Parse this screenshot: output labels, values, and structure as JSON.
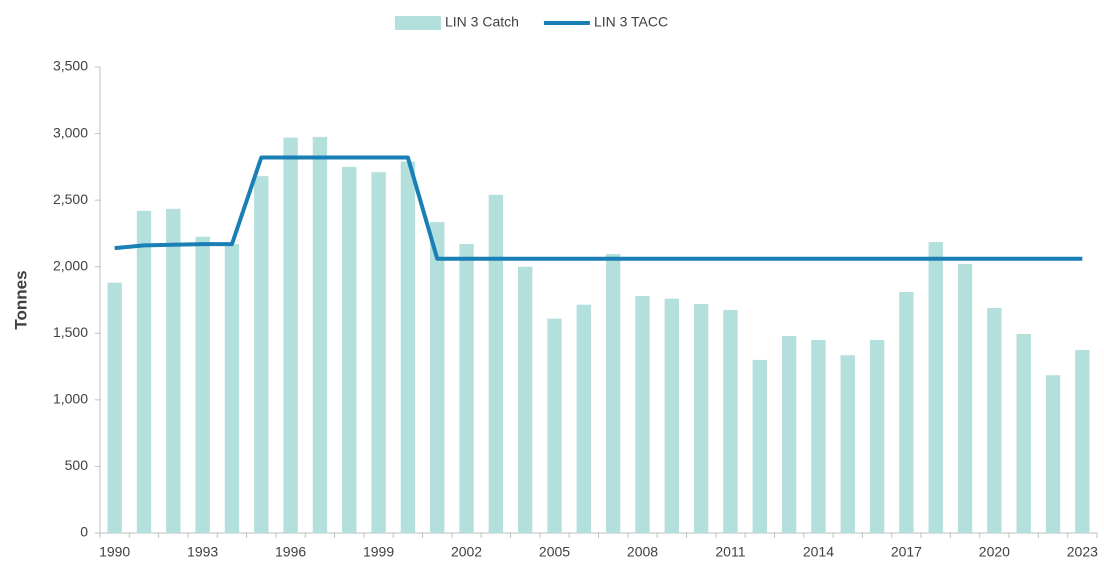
{
  "chart_data": {
    "type": "bar",
    "y_label": "Tonnes",
    "categories": [
      "1990",
      null,
      null,
      "1993",
      null,
      null,
      "1996",
      null,
      null,
      "1999",
      null,
      null,
      "2002",
      null,
      null,
      "2005",
      null,
      null,
      "2008",
      null,
      null,
      "2011",
      null,
      null,
      "2014",
      null,
      null,
      "2017",
      null,
      null,
      "2020",
      null,
      null,
      "2023"
    ],
    "series": [
      {
        "name": "LIN 3 Catch",
        "type": "bar",
        "color": "#b3dfdc",
        "values": [
          1880,
          2420,
          2435,
          2225,
          2170,
          2680,
          2970,
          2975,
          2750,
          2710,
          2790,
          2335,
          2170,
          2540,
          2000,
          1610,
          1715,
          2095,
          1780,
          1760,
          1720,
          1675,
          1300,
          1480,
          1450,
          1335,
          1450,
          1810,
          2185,
          2020,
          1690,
          1495,
          1185,
          1375
        ]
      },
      {
        "name": "LIN 3 TACC",
        "type": "line",
        "color": "#1a7fb5",
        "values": [
          2140,
          2160,
          2165,
          2170,
          2170,
          2820,
          2820,
          2820,
          2820,
          2820,
          2820,
          2060,
          2060,
          2060,
          2060,
          2060,
          2060,
          2060,
          2060,
          2060,
          2060,
          2060,
          2060,
          2060,
          2060,
          2060,
          2060,
          2060,
          2060,
          2060,
          2060,
          2060,
          2060,
          2060
        ]
      }
    ],
    "ylim": [
      0,
      3500
    ],
    "yticks": [
      0,
      500,
      {
        "value": 1000,
        "label": "1,000"
      },
      {
        "value": 1500,
        "label": "1,500"
      },
      {
        "value": 2000,
        "label": "2,000"
      },
      {
        "value": 2500,
        "label": "2,500"
      },
      {
        "value": 3000,
        "label": "3,000"
      },
      {
        "value": 3500,
        "label": "3,500"
      }
    ],
    "legend": "top"
  }
}
